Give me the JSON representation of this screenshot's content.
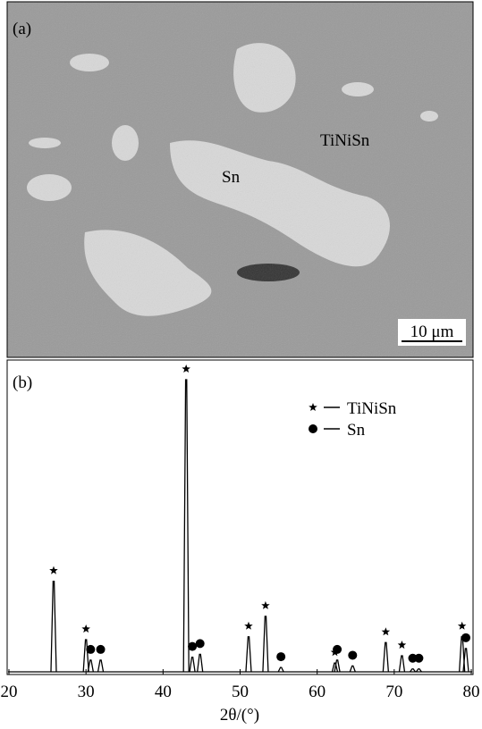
{
  "panel_a": {
    "label": "(a)",
    "phase_1": "Sn",
    "phase_2": "TiNiSn",
    "scale_bar": "10 μm"
  },
  "chart_data": {
    "type": "xrd",
    "label": "(b)",
    "xlabel": "2θ/(°)",
    "xlim": [
      20,
      80
    ],
    "xticks": [
      20,
      30,
      40,
      50,
      60,
      70,
      80
    ],
    "ylim": [
      0,
      100
    ],
    "series": [
      {
        "name": "TiNiSn",
        "color": "#000000",
        "marker": "star",
        "x": [
          25.8,
          30.0,
          43.0,
          51.1,
          53.3,
          62.3,
          68.9,
          71.0,
          78.8
        ],
        "values": [
          31,
          11,
          100,
          12,
          19,
          3,
          10,
          5.5,
          12
        ]
      },
      {
        "name": "Sn",
        "color": "#000000",
        "marker": "circle",
        "x": [
          30.6,
          31.9,
          43.8,
          44.8,
          55.3,
          62.6,
          64.6,
          72.4,
          73.2,
          79.3
        ],
        "values": [
          4,
          4,
          5,
          6,
          1.5,
          4,
          2,
          1,
          1,
          8
        ]
      }
    ]
  }
}
